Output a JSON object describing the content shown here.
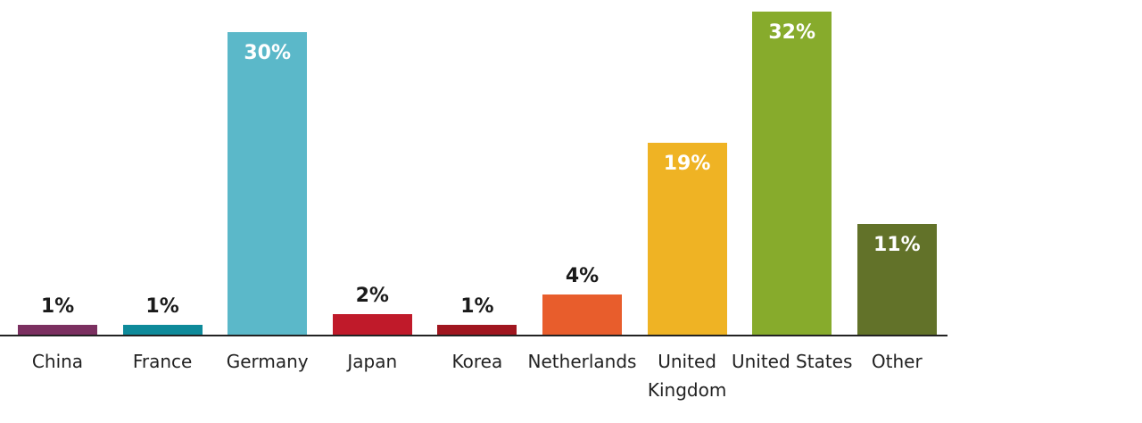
{
  "chart_data": {
    "type": "bar",
    "categories": [
      "China",
      "France",
      "Germany",
      "Japan",
      "Korea",
      "Netherlands",
      "United Kingdom",
      "United States",
      "Other"
    ],
    "values": [
      1,
      1,
      30,
      2,
      1,
      4,
      19,
      32,
      11
    ],
    "value_labels": [
      "1%",
      "1%",
      "30%",
      "2%",
      "1%",
      "4%",
      "19%",
      "32%",
      "11%"
    ],
    "colors": [
      "#7b3060",
      "#0e8a9a",
      "#5bb8c9",
      "#c01a2a",
      "#a0161f",
      "#e85d2c",
      "#efb324",
      "#87ab2c",
      "#627229"
    ]
  }
}
